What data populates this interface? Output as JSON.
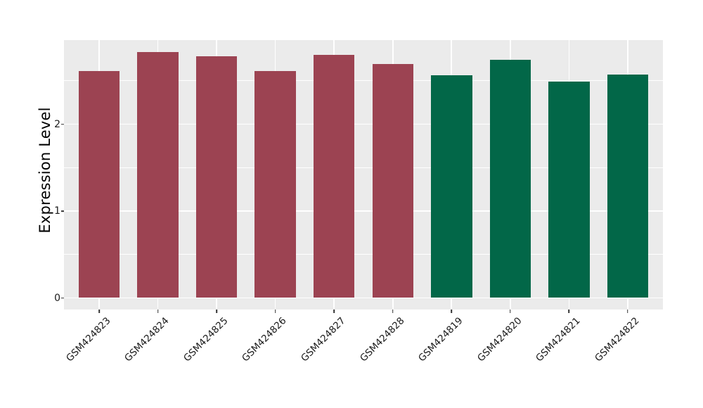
{
  "chart_data": {
    "type": "bar",
    "title": "",
    "ylabel": "Expression Level",
    "xlabel": "",
    "legend": "none",
    "grid": "white major and minor gridlines on gray panel",
    "panel_background": "#EBEBEB",
    "grid_color": "#FFFFFF",
    "tick_mark_color": "#333333",
    "axis_text_color": "#1a1a1a",
    "y_ticks": [
      0,
      1,
      2
    ],
    "y_minor_ticks": [
      0.5,
      1.5,
      2.5
    ],
    "ylim_display": [
      -0.14,
      2.97
    ],
    "categories": [
      "GSM424823",
      "GSM424824",
      "GSM424825",
      "GSM424826",
      "GSM424827",
      "GSM424828",
      "GSM424819",
      "GSM424820",
      "GSM424821",
      "GSM424822"
    ],
    "bars": [
      {
        "category": "GSM424823",
        "value": 2.61,
        "color": "#9C4352"
      },
      {
        "category": "GSM424824",
        "value": 2.83,
        "color": "#9C4352"
      },
      {
        "category": "GSM424825",
        "value": 2.78,
        "color": "#9C4352"
      },
      {
        "category": "GSM424826",
        "value": 2.61,
        "color": "#9C4352"
      },
      {
        "category": "GSM424827",
        "value": 2.8,
        "color": "#9C4352"
      },
      {
        "category": "GSM424828",
        "value": 2.69,
        "color": "#9C4352"
      },
      {
        "category": "GSM424819",
        "value": 2.56,
        "color": "#026748"
      },
      {
        "category": "GSM424820",
        "value": 2.74,
        "color": "#026748"
      },
      {
        "category": "GSM424821",
        "value": 2.49,
        "color": "#026748"
      },
      {
        "category": "GSM424822",
        "value": 2.57,
        "color": "#026748"
      }
    ],
    "group_colors": {
      "GSM424823-GSM424828": "#9C4352",
      "GSM424819-GSM424822": "#026748"
    }
  }
}
